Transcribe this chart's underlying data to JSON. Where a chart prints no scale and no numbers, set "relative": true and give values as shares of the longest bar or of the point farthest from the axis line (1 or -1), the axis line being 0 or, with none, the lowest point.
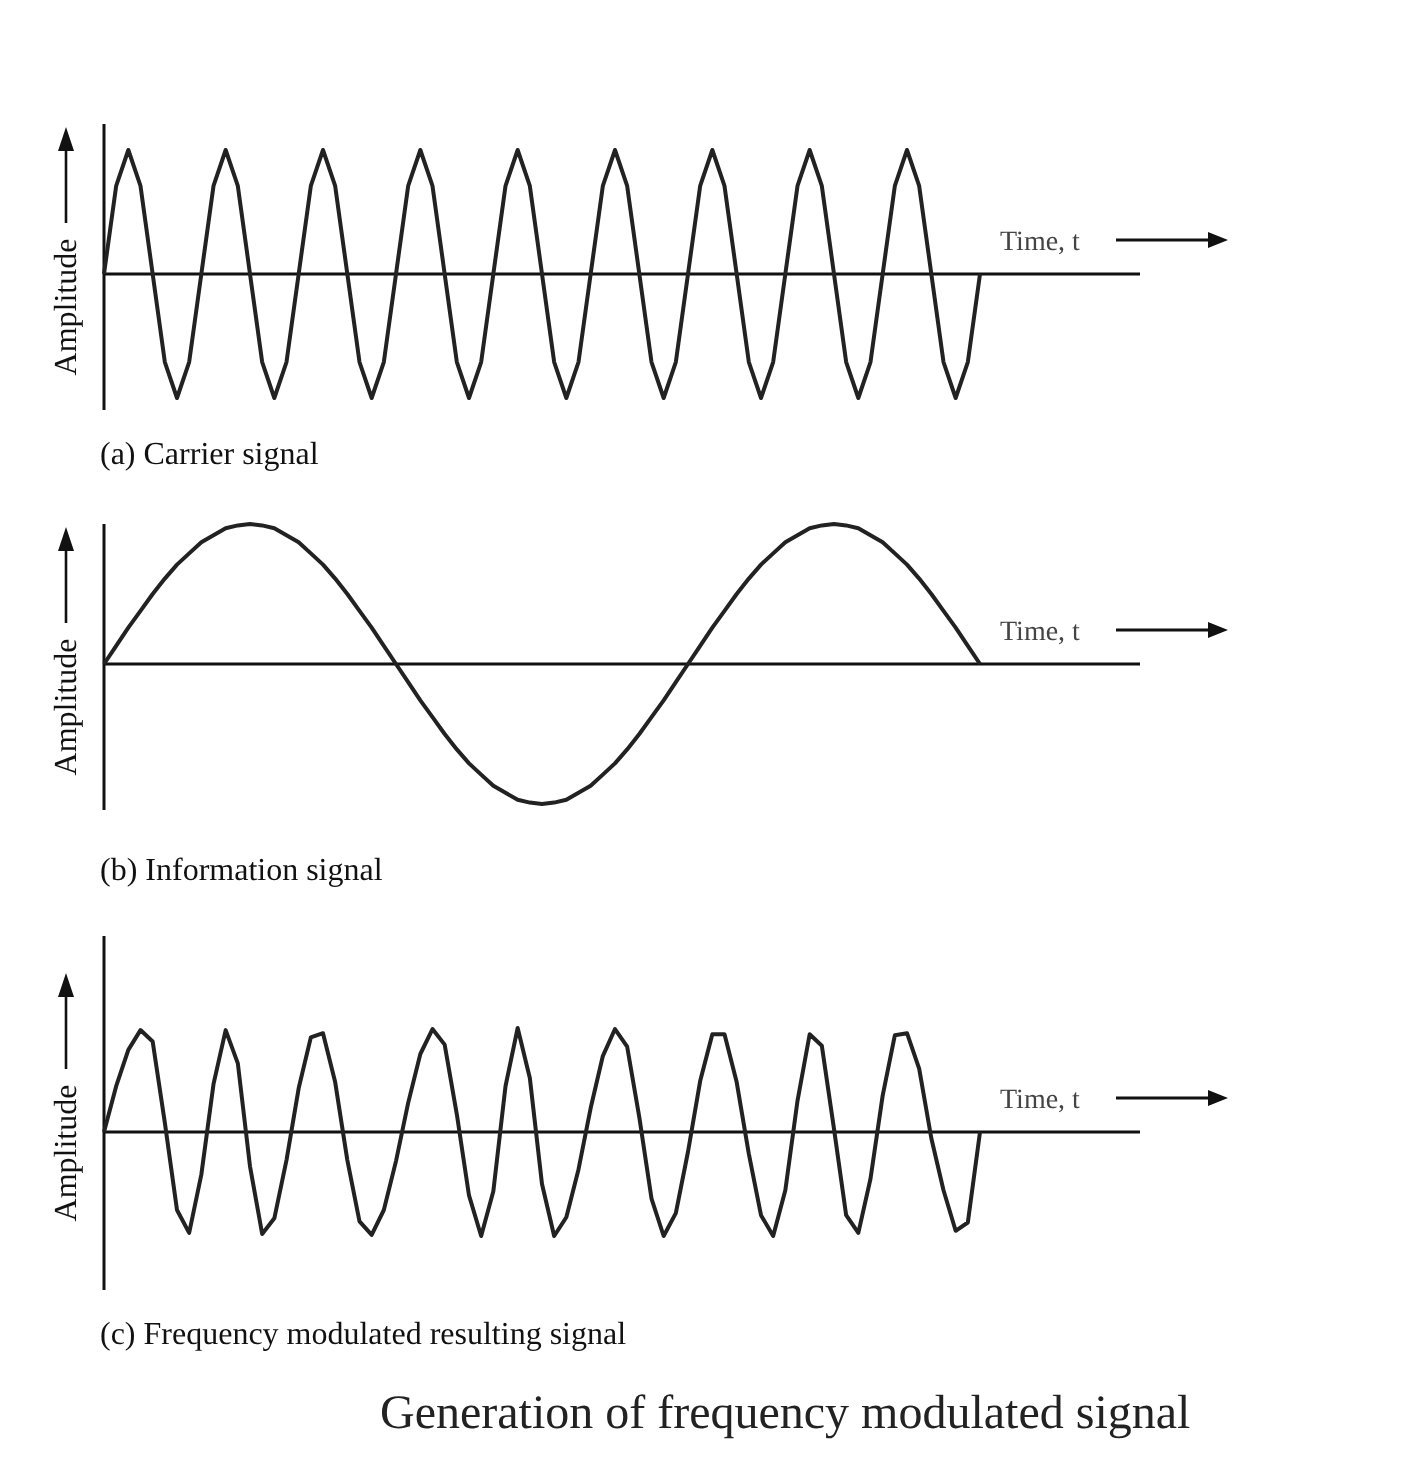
{
  "chart_data": [
    {
      "type": "line",
      "relative": true,
      "title": "(a) Carrier signal",
      "xlabel": "Time, t",
      "ylabel": "Amplitude",
      "color": "#222222",
      "categories": [
        null,
        null,
        null,
        null,
        null,
        null,
        null,
        null,
        null,
        null,
        null,
        null,
        null,
        null,
        null,
        null,
        null,
        null,
        null,
        null,
        null,
        null,
        null,
        null,
        null,
        null,
        null,
        null,
        null,
        null,
        null,
        null,
        null,
        null,
        null,
        null,
        null,
        null,
        null,
        null,
        null,
        null,
        null,
        null,
        null,
        null,
        null,
        null,
        null,
        null,
        null,
        null,
        null,
        null,
        null,
        null,
        null,
        null,
        null,
        null,
        null,
        null,
        null,
        null,
        null,
        null,
        null,
        null,
        null,
        null,
        null,
        null,
        null
      ],
      "values": [
        0,
        0.71,
        1,
        0.71,
        0,
        -0.71,
        -1,
        -0.71,
        0,
        0.71,
        1,
        0.71,
        0,
        -0.71,
        -1,
        -0.71,
        0,
        0.71,
        1,
        0.71,
        0,
        -0.71,
        -1,
        -0.71,
        0,
        0.71,
        1,
        0.71,
        0,
        -0.71,
        -1,
        -0.71,
        0,
        0.71,
        1,
        0.71,
        0,
        -0.71,
        -1,
        -0.71,
        0,
        0.71,
        1,
        0.71,
        0,
        -0.71,
        -1,
        -0.71,
        0,
        0.71,
        1,
        0.71,
        0,
        -0.71,
        -1,
        -0.71,
        0,
        0.71,
        1,
        0.71,
        0,
        -0.71,
        -1,
        -0.71,
        0,
        0.71,
        1,
        0.71,
        0,
        -0.71,
        -1,
        -0.71,
        0
      ]
    },
    {
      "type": "line",
      "relative": true,
      "title": "(b) Information signal",
      "xlabel": "Time, t",
      "ylabel": "Amplitude",
      "color": "#222222",
      "categories": [
        null,
        null,
        null,
        null,
        null,
        null,
        null,
        null,
        null,
        null,
        null,
        null,
        null,
        null,
        null,
        null,
        null,
        null,
        null,
        null,
        null,
        null,
        null,
        null,
        null,
        null,
        null,
        null,
        null,
        null,
        null,
        null,
        null,
        null,
        null,
        null,
        null,
        null,
        null,
        null,
        null,
        null,
        null,
        null,
        null,
        null,
        null,
        null,
        null,
        null,
        null,
        null,
        null,
        null,
        null,
        null,
        null,
        null,
        null,
        null,
        null,
        null,
        null,
        null,
        null,
        null,
        null,
        null,
        null,
        null,
        null,
        null,
        null
      ],
      "values": [
        0,
        0.13,
        0.26,
        0.38,
        0.5,
        0.61,
        0.71,
        0.79,
        0.87,
        0.92,
        0.97,
        0.99,
        1,
        0.99,
        0.97,
        0.92,
        0.87,
        0.79,
        0.71,
        0.61,
        0.5,
        0.38,
        0.26,
        0.13,
        0,
        -0.13,
        -0.26,
        -0.38,
        -0.5,
        -0.61,
        -0.71,
        -0.79,
        -0.87,
        -0.92,
        -0.97,
        -0.99,
        -1,
        -0.99,
        -0.97,
        -0.92,
        -0.87,
        -0.79,
        -0.71,
        -0.61,
        -0.5,
        -0.38,
        -0.26,
        -0.13,
        0,
        0.13,
        0.26,
        0.38,
        0.5,
        0.61,
        0.71,
        0.79,
        0.87,
        0.92,
        0.97,
        0.99,
        1,
        0.99,
        0.97,
        0.92,
        0.87,
        0.79,
        0.71,
        0.61,
        0.5,
        0.38,
        0.26,
        0.13,
        0
      ]
    },
    {
      "type": "line",
      "relative": true,
      "title": "(c) Frequency modulated resulting signal",
      "xlabel": "Time, t",
      "ylabel": "Amplitude",
      "color": "#222222",
      "annotations": [
        "Generation of frequency modulated signal"
      ],
      "categories": [
        null,
        null,
        null,
        null,
        null,
        null,
        null,
        null,
        null,
        null,
        null,
        null,
        null,
        null,
        null,
        null,
        null,
        null,
        null,
        null,
        null,
        null,
        null,
        null,
        null,
        null,
        null,
        null,
        null,
        null,
        null,
        null,
        null,
        null,
        null,
        null,
        null,
        null,
        null,
        null,
        null,
        null,
        null,
        null,
        null,
        null,
        null,
        null,
        null,
        null,
        null,
        null,
        null,
        null,
        null,
        null,
        null,
        null,
        null,
        null,
        null,
        null,
        null,
        null,
        null,
        null,
        null,
        null,
        null,
        null,
        null,
        null,
        null
      ],
      "values": [
        0,
        0.44,
        0.79,
        0.98,
        0.87,
        0.09,
        -0.75,
        -0.97,
        -0.41,
        0.46,
        0.98,
        0.66,
        -0.33,
        -0.98,
        -0.83,
        -0.27,
        0.42,
        0.91,
        0.95,
        0.48,
        -0.27,
        -0.86,
        -0.99,
        -0.75,
        -0.28,
        0.28,
        0.75,
        0.99,
        0.84,
        0.17,
        -0.61,
        -1,
        -0.57,
        0.44,
        1,
        0.52,
        -0.5,
        -1,
        -0.82,
        -0.36,
        0.23,
        0.73,
        0.99,
        0.82,
        0.14,
        -0.64,
        -1,
        -0.78,
        -0.19,
        0.49,
        0.94,
        0.94,
        0.48,
        -0.21,
        -0.8,
        -1,
        -0.56,
        0.3,
        0.94,
        0.83,
        0.03,
        -0.8,
        -0.97,
        -0.45,
        0.35,
        0.93,
        0.95,
        0.61,
        -0.06,
        -0.56,
        -0.95,
        -0.87,
        0
      ]
    }
  ]
}
